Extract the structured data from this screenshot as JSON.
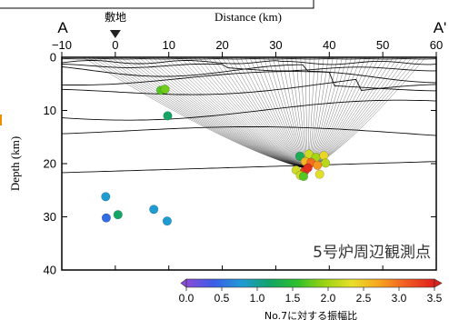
{
  "chart_data": {
    "type": "scatter",
    "xlabel": "Distance (km)",
    "ylabel": "Depth (km)",
    "xlim": [
      -10,
      60
    ],
    "ylim": [
      0,
      40
    ],
    "y_inverted": true,
    "x_ticks": [
      -10,
      0,
      10,
      20,
      30,
      40,
      50,
      60
    ],
    "y_ticks": [
      0,
      10,
      20,
      30,
      40
    ],
    "profile_start_label": "A",
    "profile_end_label": "A'",
    "site_marker": {
      "x": 0,
      "label": "敷地",
      "symbol": "triangle-down"
    },
    "annotation": "5号炉周辺観測点",
    "focus": {
      "x": 36,
      "y": 21
    },
    "colorbar": {
      "title": "No.7に対する振幅比",
      "min": 0.0,
      "max": 3.5,
      "ticks": [
        "0.0",
        "0.5",
        "1.0",
        "1.5",
        "2.0",
        "2.5",
        "3.0",
        "3.5"
      ],
      "colormap": [
        "#8a4bd9",
        "#3a5de8",
        "#1f9ad6",
        "#12a36a",
        "#2cbf2c",
        "#9ad312",
        "#e8e02a",
        "#f7a41e",
        "#f05a22",
        "#e0201c"
      ]
    },
    "points": [
      {
        "x": 8.5,
        "y": 6.2,
        "value": 1.7
      },
      {
        "x": 9.3,
        "y": 6.0,
        "value": 1.8
      },
      {
        "x": 9.8,
        "y": 11.0,
        "value": 1.2
      },
      {
        "x": -1.8,
        "y": 26.2,
        "value": 0.8
      },
      {
        "x": -1.7,
        "y": 30.2,
        "value": 0.5
      },
      {
        "x": 0.5,
        "y": 29.6,
        "value": 1.2
      },
      {
        "x": 7.2,
        "y": 28.6,
        "value": 0.8
      },
      {
        "x": 9.7,
        "y": 30.8,
        "value": 0.8
      },
      {
        "x": 34.5,
        "y": 18.6,
        "value": 1.3
      },
      {
        "x": 36.2,
        "y": 18.2,
        "value": 2.2
      },
      {
        "x": 37.5,
        "y": 18.8,
        "value": 2.0
      },
      {
        "x": 39.0,
        "y": 18.5,
        "value": 2.4
      },
      {
        "x": 39.3,
        "y": 19.9,
        "value": 2.1
      },
      {
        "x": 35.5,
        "y": 19.6,
        "value": 2.6
      },
      {
        "x": 36.6,
        "y": 19.8,
        "value": 3.0
      },
      {
        "x": 37.8,
        "y": 20.3,
        "value": 2.8
      },
      {
        "x": 33.8,
        "y": 21.2,
        "value": 2.2
      },
      {
        "x": 35.4,
        "y": 21.4,
        "value": 3.3
      },
      {
        "x": 36.0,
        "y": 20.8,
        "value": 3.4
      },
      {
        "x": 34.6,
        "y": 22.2,
        "value": 2.2
      },
      {
        "x": 38.2,
        "y": 22.0,
        "value": 2.3
      },
      {
        "x": 35.2,
        "y": 22.4,
        "value": 1.7
      }
    ]
  }
}
